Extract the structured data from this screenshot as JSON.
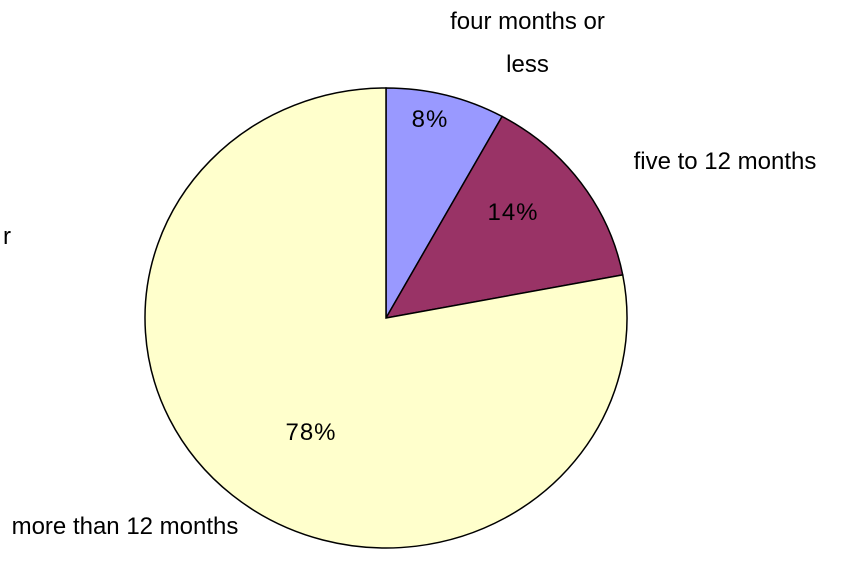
{
  "chart_data": {
    "type": "pie",
    "categories": [
      "four months or less",
      "five to 12 months",
      "more than 12 months"
    ],
    "values": [
      8,
      14,
      78
    ],
    "value_labels": [
      "8%",
      "14%",
      "78%"
    ],
    "colors": [
      "#9999ff",
      "#993366",
      "#ffffcc"
    ],
    "annotations": [
      "r"
    ]
  }
}
